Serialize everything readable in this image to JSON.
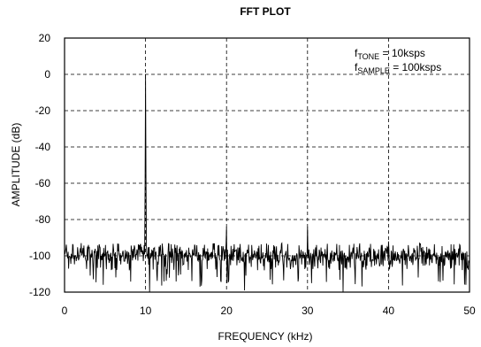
{
  "chart_data": {
    "type": "line",
    "title": "FFT PLOT",
    "xlabel": "FREQUENCY (kHz)",
    "ylabel": "AMPLITUDE (dB)",
    "xlim": [
      0,
      50
    ],
    "ylim": [
      -120,
      20
    ],
    "xticks": [
      "0",
      "10",
      "20",
      "30",
      "40",
      "50"
    ],
    "yticks": [
      "20",
      "0",
      "-20",
      "-40",
      "-60",
      "-80",
      "-100",
      "-120"
    ],
    "grid": true,
    "annotation": {
      "line1_prefix": "f",
      "line1_sub": "TONE",
      "line1_rest": " = 10ksps",
      "line2_prefix": "f",
      "line2_sub": "SAMPLE",
      "line2_rest": " = 100ksps",
      "placement": "top-right"
    },
    "series": [
      {
        "noise_floor_db": -100,
        "noise_band_db": [
          -108,
          -93
        ],
        "deep_nulls": [
          {
            "x": 10.5,
            "y": -120
          },
          {
            "x": 22.2,
            "y": -119
          },
          {
            "x": 34.4,
            "y": -120
          },
          {
            "x": 4.8,
            "y": -116
          },
          {
            "x": 16.7,
            "y": -117
          }
        ],
        "peaks": [
          {
            "x": 10,
            "y": 0
          },
          {
            "x": 20,
            "y": -84
          },
          {
            "x": 30,
            "y": -84
          },
          {
            "x": 40,
            "y": -92
          }
        ]
      }
    ]
  }
}
